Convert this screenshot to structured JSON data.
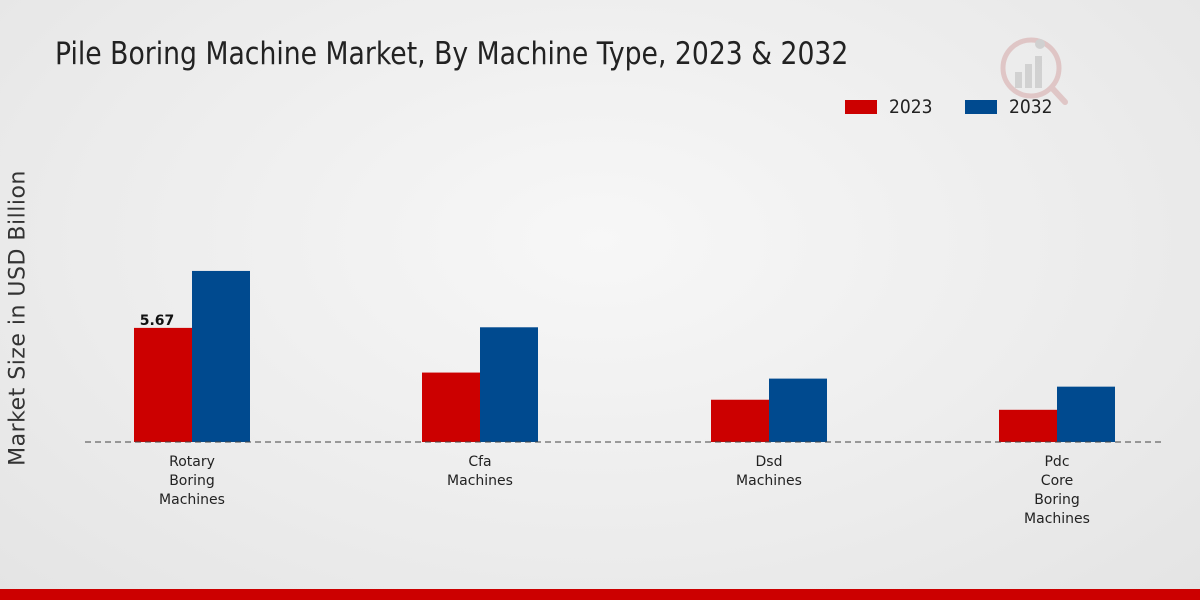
{
  "chart_data": {
    "type": "bar",
    "title": "Pile Boring Machine Market, By Machine Type, 2023 & 2032",
    "xlabel": "",
    "ylabel": "Market Size in USD Billion",
    "categories": [
      "Rotary Boring Machines",
      "Cfa Machines",
      "Dsd Machines",
      "Pdc Core Boring Machines"
    ],
    "category_lines": [
      [
        "Rotary",
        "Boring",
        "Machines"
      ],
      [
        "Cfa",
        "Machines"
      ],
      [
        "Dsd",
        "Machines"
      ],
      [
        "Pdc",
        "Core",
        "Boring",
        "Machines"
      ]
    ],
    "series": [
      {
        "name": "2023",
        "color": "#cc0000",
        "values": [
          5.67,
          3.45,
          2.1,
          1.6
        ]
      },
      {
        "name": "2032",
        "color": "#004a8f",
        "values": [
          8.5,
          5.7,
          3.15,
          2.75
        ]
      }
    ],
    "data_labels": [
      {
        "series": 0,
        "index": 0,
        "text": "5.67"
      }
    ],
    "ylim": [
      0,
      16
    ],
    "grid": false,
    "legend_position": "top-right"
  }
}
